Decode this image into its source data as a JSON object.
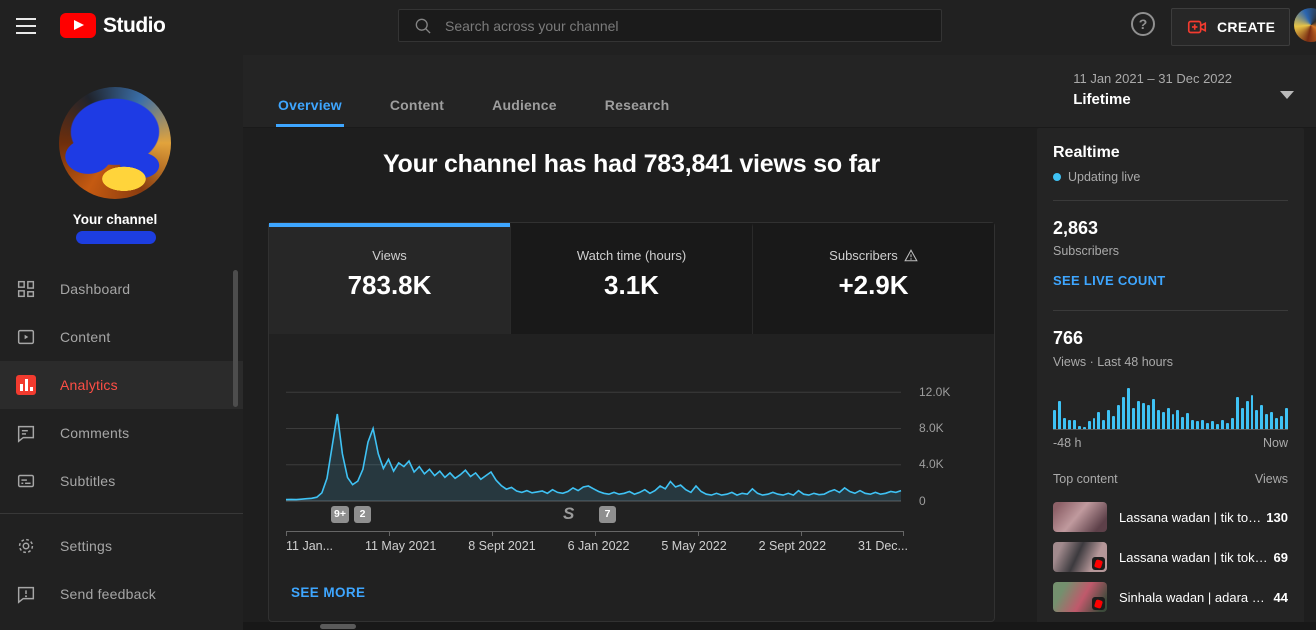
{
  "topbar": {
    "title": "Studio",
    "search_placeholder": "Search across your channel",
    "create_label": "CREATE"
  },
  "sidebar": {
    "channel_label": "Your channel",
    "items": [
      {
        "label": "Dashboard",
        "active": false
      },
      {
        "label": "Content",
        "active": false
      },
      {
        "label": "Analytics",
        "active": true
      },
      {
        "label": "Comments",
        "active": false
      },
      {
        "label": "Subtitles",
        "active": false
      }
    ],
    "footer_items": [
      {
        "label": "Settings"
      },
      {
        "label": "Send feedback"
      }
    ]
  },
  "header": {
    "tabs": [
      {
        "label": "Overview",
        "active": true
      },
      {
        "label": "Content",
        "active": false
      },
      {
        "label": "Audience",
        "active": false
      },
      {
        "label": "Research",
        "active": false
      }
    ],
    "date_range": "11 Jan 2021 – 31 Dec 2022",
    "date_mode": "Lifetime"
  },
  "main": {
    "title": "Your channel has had 783,841 views so far",
    "metrics": [
      {
        "label": "Views",
        "value": "783.8K",
        "active": true
      },
      {
        "label": "Watch time (hours)",
        "value": "3.1K",
        "active": false
      },
      {
        "label": "Subscribers",
        "value": "+2.9K",
        "active": false,
        "warning": true
      }
    ],
    "badges": [
      {
        "text": "9+"
      },
      {
        "text": "2"
      },
      {
        "icon": "shorts"
      },
      {
        "text": "7"
      }
    ],
    "see_more": "SEE MORE"
  },
  "chart_data": [
    {
      "type": "area",
      "title": "Channel views over time",
      "x_labels": [
        "11 Jan...",
        "11 May 2021",
        "8 Sept 2021",
        "6 Jan 2022",
        "5 May 2022",
        "2 Sept 2022",
        "31 Dec..."
      ],
      "y_ticks": [
        "12.0K",
        "8.0K",
        "4.0K",
        "0"
      ],
      "y_grid": [
        12000,
        8000,
        4000,
        0
      ],
      "ylim": [
        0,
        16000
      ],
      "line_color": "#3fc2f4",
      "fill_color": "rgba(79,195,247,0.14)",
      "values": [
        150,
        180,
        160,
        200,
        250,
        300,
        420,
        900,
        2500,
        6000,
        9600,
        5200,
        2600,
        1800,
        2200,
        3500,
        6500,
        8000,
        5200,
        3600,
        4600,
        3300,
        4200,
        3800,
        4400,
        3200,
        3800,
        3000,
        3500,
        2800,
        3300,
        2600,
        3100,
        2500,
        2900,
        3400,
        2700,
        3100,
        2400,
        2800,
        3200,
        2300,
        1700,
        1300,
        1500,
        1100,
        950,
        1150,
        900,
        1000,
        1100,
        850,
        1250,
        950,
        850,
        1050,
        1450,
        1150,
        1550,
        1650,
        1350,
        1050,
        850,
        750,
        950,
        750,
        850,
        1050,
        750,
        950,
        1250,
        850,
        1150,
        1650,
        1350,
        2150,
        1550,
        1750,
        1250,
        950,
        1650,
        1050,
        750,
        650,
        850,
        650,
        750,
        950,
        650,
        850,
        750,
        1350,
        850,
        650,
        750,
        950,
        750,
        650,
        850,
        650,
        1150,
        750,
        650,
        850,
        700,
        750,
        1050,
        1250,
        950,
        1450,
        1050,
        850,
        1150,
        850,
        750,
        950,
        750,
        850,
        1050,
        950,
        1150
      ]
    },
    {
      "type": "bar",
      "title": "Views · Last 48 hours",
      "x_left": "-48 h",
      "x_right": "Now",
      "bar_color": "#3fc2f4",
      "values": [
        45,
        65,
        25,
        22,
        20,
        8,
        5,
        18,
        25,
        40,
        22,
        45,
        30,
        55,
        75,
        95,
        50,
        65,
        60,
        55,
        70,
        45,
        40,
        50,
        35,
        45,
        28,
        38,
        20,
        18,
        22,
        15,
        18,
        12,
        20,
        15,
        25,
        75,
        50,
        65,
        80,
        45,
        55,
        35,
        40,
        25,
        30,
        50
      ]
    }
  ],
  "realtime": {
    "title": "Realtime",
    "status": "Updating live",
    "subscribers": "2,863",
    "subscribers_label": "Subscribers",
    "live_count_link": "SEE LIVE COUNT",
    "views": "766",
    "views_label": "Views · Last 48 hours",
    "axis_left": "-48 h",
    "axis_right": "Now",
    "top_content_label": "Top content",
    "views_col_label": "Views",
    "items": [
      {
        "title": "Lassana wadan | tik to…",
        "views": "130",
        "shorts": false
      },
      {
        "title": "Lassana wadan | tik tok…",
        "views": "69",
        "shorts": true
      },
      {
        "title": "Sinhala wadan | adara …",
        "views": "44",
        "shorts": true
      }
    ]
  },
  "colors": {
    "accent_blue": "#3ea6ff",
    "chart_cyan": "#3fc2f4",
    "brand_red": "#ff0000",
    "analytics_red": "#ff4e45"
  }
}
